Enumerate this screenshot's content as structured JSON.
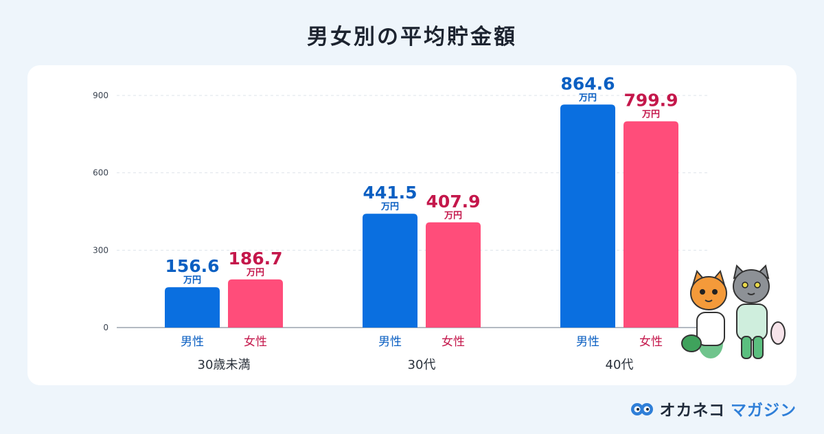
{
  "title": "男女別の平均貯金額",
  "brand": {
    "name_part1": "オカネコ",
    "name_part2": "マガジン",
    "icon": "owl-glasses-logo"
  },
  "illustration": "two-cats-walking",
  "colors": {
    "male": "#0a6fe0",
    "female": "#ff4d7a",
    "male_label": "#0b5fc2",
    "female_label": "#c4174b"
  },
  "chart_data": {
    "type": "bar",
    "categories": [
      "30歳未満",
      "30代",
      "40代"
    ],
    "series": [
      {
        "name": "男性",
        "values": [
          156.6,
          441.5,
          864.6
        ]
      },
      {
        "name": "女性",
        "values": [
          186.7,
          407.9,
          799.9
        ]
      }
    ],
    "value_unit": "万円",
    "yticks": [
      0,
      300,
      600,
      900
    ],
    "ylim": [
      0,
      900
    ],
    "grid": true,
    "legend": "none"
  }
}
